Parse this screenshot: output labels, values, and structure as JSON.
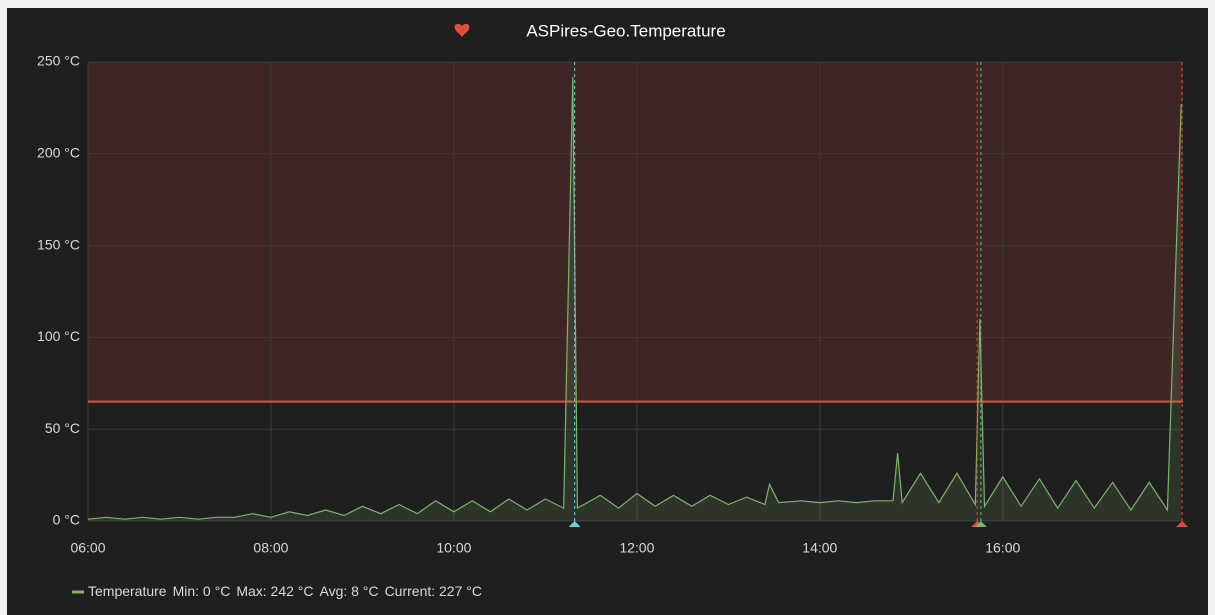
{
  "chart_data": {
    "type": "line",
    "title": "ASPires-Geo.Temperature",
    "xlim": [
      6,
      17.97
    ],
    "xticks": [
      {
        "value": 6,
        "label": "06:00"
      },
      {
        "value": 8,
        "label": "08:00"
      },
      {
        "value": 10,
        "label": "10:00"
      },
      {
        "value": 12,
        "label": "12:00"
      },
      {
        "value": 14,
        "label": "14:00"
      },
      {
        "value": 16,
        "label": "16:00"
      }
    ],
    "ylim": [
      0,
      250
    ],
    "yticks": [
      {
        "value": 0,
        "label": "0 °C"
      },
      {
        "value": 50,
        "label": "50 °C"
      },
      {
        "value": 100,
        "label": "100 °C"
      },
      {
        "value": 150,
        "label": "150 °C"
      },
      {
        "value": 200,
        "label": "200 °C"
      },
      {
        "value": 250,
        "label": "250 °C"
      }
    ],
    "grid": true,
    "threshold": {
      "value": 65,
      "color": "#e24d42"
    },
    "annotations": [
      {
        "x": 11.32,
        "color": "#6ed0e0"
      },
      {
        "x": 15.72,
        "color": "#e24d42"
      },
      {
        "x": 15.76,
        "color": "#7eb26d"
      },
      {
        "x": 17.96,
        "color": "#e24d42"
      }
    ],
    "series": [
      {
        "name": "Temperature",
        "color": "#7eb26d",
        "x": [
          6.0,
          6.2,
          6.4,
          6.6,
          6.8,
          7.0,
          7.2,
          7.4,
          7.6,
          7.8,
          8.0,
          8.2,
          8.4,
          8.6,
          8.8,
          9.0,
          9.2,
          9.4,
          9.6,
          9.8,
          10.0,
          10.2,
          10.4,
          10.6,
          10.8,
          11.0,
          11.2,
          11.3,
          11.35,
          11.6,
          11.8,
          12.0,
          12.2,
          12.4,
          12.6,
          12.8,
          13.0,
          13.2,
          13.4,
          13.45,
          13.55,
          13.8,
          14.0,
          14.2,
          14.4,
          14.6,
          14.8,
          14.85,
          14.9,
          15.1,
          15.3,
          15.5,
          15.7,
          15.75,
          15.8,
          16.0,
          16.2,
          16.4,
          16.6,
          16.8,
          17.0,
          17.2,
          17.4,
          17.6,
          17.8,
          17.95
        ],
        "values": [
          1,
          2,
          1,
          2,
          1,
          2,
          1,
          2,
          2,
          4,
          2,
          5,
          3,
          6,
          3,
          8,
          4,
          9,
          4,
          11,
          5,
          11,
          5,
          12,
          6,
          12,
          7,
          242,
          7,
          14,
          7,
          15,
          8,
          14,
          8,
          14,
          9,
          13,
          9,
          20,
          10,
          11,
          10,
          11,
          10,
          11,
          11,
          37,
          10,
          26,
          10,
          26,
          9,
          110,
          8,
          24,
          8,
          23,
          7,
          22,
          7,
          21,
          6,
          21,
          6,
          227
        ]
      }
    ],
    "legend_stats": [
      "Min: 0 °C",
      "Max: 242 °C",
      "Avg: 8 °C",
      "Current: 227 °C"
    ]
  }
}
